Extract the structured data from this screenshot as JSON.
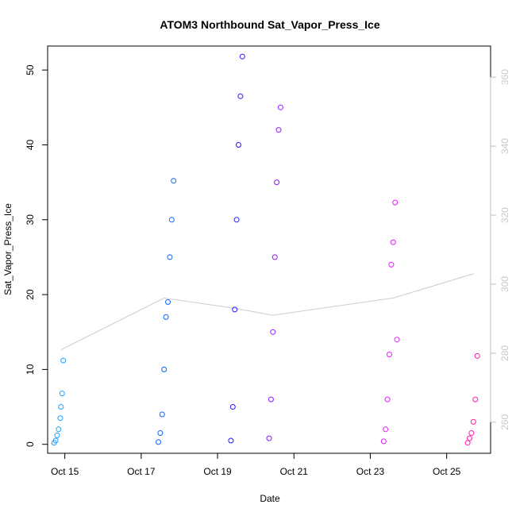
{
  "chart_data": {
    "type": "scatter",
    "title": "ATOM3 Northbound Sat_Vapor_Press_Ice",
    "xlabel": "Date",
    "ylabel": "Sat_Vapor_Press_Ice",
    "x_range_days": [
      "Oct 14 14:00",
      "Oct 26 04:00"
    ],
    "xlim_days": [
      14.55,
      26.15
    ],
    "ylim": [
      -1.2,
      53.2
    ],
    "y_ticks": [
      0,
      10,
      20,
      30,
      40,
      50
    ],
    "x_ticks": [
      {
        "label": "Oct 15",
        "value": 15
      },
      {
        "label": "Oct 17",
        "value": 17
      },
      {
        "label": "Oct 19",
        "value": 19
      },
      {
        "label": "Oct 21",
        "value": 21
      },
      {
        "label": "Oct 23",
        "value": 23
      },
      {
        "label": "Oct 25",
        "value": 25
      }
    ],
    "y2_ticks": [
      260,
      280,
      300,
      320,
      340,
      360
    ],
    "y2lim": [
      251,
      369
    ],
    "marker": "open-circle",
    "series": [
      {
        "color": "#1aa3ff",
        "x": [
          14.72,
          14.76,
          14.8,
          14.84,
          14.88,
          14.9,
          14.93,
          14.96
        ],
        "y": [
          0.2,
          0.5,
          1.2,
          2.0,
          3.5,
          5.0,
          6.8,
          11.2
        ]
      },
      {
        "color": "#0a66ff",
        "x": [
          17.45,
          17.5,
          17.55,
          17.6,
          17.65,
          17.7,
          17.75,
          17.8,
          17.85
        ],
        "y": [
          0.3,
          1.5,
          4.0,
          10.0,
          17.0,
          19.0,
          25.0,
          30.0,
          35.2
        ]
      },
      {
        "color": "#2418ff",
        "x": [
          19.35,
          19.4,
          19.45,
          19.5,
          19.55,
          19.6,
          19.65
        ],
        "y": [
          0.5,
          5.0,
          18.0,
          30.0,
          40.0,
          46.5,
          51.8
        ]
      },
      {
        "color": "#8a1aff",
        "x": [
          20.35,
          20.4,
          20.45,
          20.5,
          20.55,
          20.6,
          20.65
        ],
        "y": [
          0.8,
          6.0,
          15.0,
          25.0,
          35.0,
          42.0,
          45.0
        ]
      },
      {
        "color": "#e61aff",
        "x": [
          23.35,
          23.4,
          23.45,
          23.5,
          23.55,
          23.6,
          23.65,
          23.7
        ],
        "y": [
          0.4,
          2.0,
          6.0,
          12.0,
          24.0,
          27.0,
          32.3,
          14.0
        ]
      },
      {
        "color": "#ff1aa8",
        "x": [
          25.55,
          25.6,
          25.65,
          25.7,
          25.75,
          25.8
        ],
        "y": [
          0.2,
          0.8,
          1.5,
          3.0,
          6.0,
          11.8
        ]
      }
    ],
    "secondary_series": {
      "name": "",
      "color": "#cccccc",
      "x": [
        14.9,
        17.6,
        19.45,
        20.45,
        23.6,
        25.7
      ],
      "y": [
        281,
        296,
        293,
        291,
        296,
        303
      ]
    }
  }
}
